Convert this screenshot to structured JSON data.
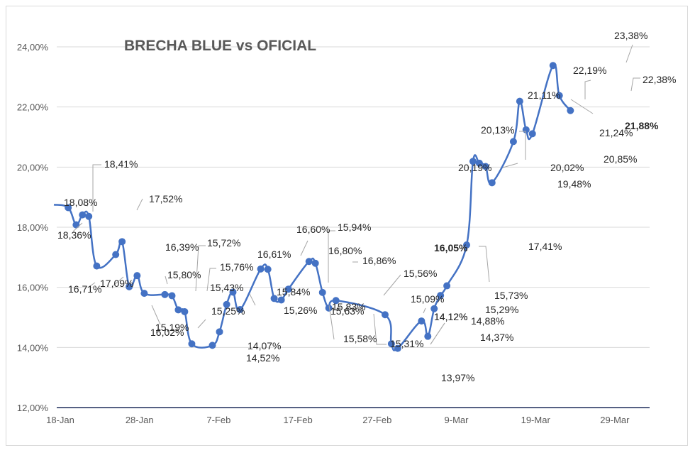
{
  "chart_data": {
    "type": "line",
    "title": "BRECHA BLUE vs OFICIAL",
    "xlabel": "",
    "ylabel": "",
    "ylim": [
      12,
      24
    ],
    "y_ticks": [
      "12,00%",
      "14,00%",
      "16,00%",
      "18,00%",
      "20,00%",
      "22,00%",
      "24,00%"
    ],
    "x_ticks": [
      "18-Jan",
      "28-Jan",
      "7-Feb",
      "17-Feb",
      "27-Feb",
      "9-Mar",
      "19-Mar",
      "29-Mar"
    ],
    "x_tick_days": [
      0,
      10,
      20,
      30,
      40,
      50,
      60,
      70
    ],
    "grid": "horizontal",
    "line_color": "#4472c4",
    "series": [
      {
        "values": [
          {
            "day": -0.8,
            "y": 18.75,
            "label": ""
          },
          {
            "day": 1.0,
            "y": 18.65,
            "label": ""
          },
          {
            "day": 2.0,
            "y": 18.08,
            "label": "18,08%"
          },
          {
            "day": 2.8,
            "y": 18.41,
            "label": "18,41%"
          },
          {
            "day": 3.6,
            "y": 18.36,
            "label": "18,36%"
          },
          {
            "day": 4.6,
            "y": 16.71,
            "label": "16,71%"
          },
          {
            "day": 7.0,
            "y": 17.09,
            "label": "17,09%"
          },
          {
            "day": 7.8,
            "y": 17.52,
            "label": "17,52%"
          },
          {
            "day": 8.7,
            "y": 16.02,
            "label": "16,02%"
          },
          {
            "day": 9.7,
            "y": 16.39,
            "label": "16,39%"
          },
          {
            "day": 10.6,
            "y": 15.8,
            "label": "15,80%"
          },
          {
            "day": 13.2,
            "y": 15.76,
            "label": "15,76%"
          },
          {
            "day": 14.1,
            "y": 15.72,
            "label": "15,72%"
          },
          {
            "day": 14.9,
            "y": 15.25,
            "label": "15,25%"
          },
          {
            "day": 15.7,
            "y": 15.19,
            "label": "15,19%"
          },
          {
            "day": 16.6,
            "y": 14.12,
            "label": "14,12%"
          },
          {
            "day": 19.2,
            "y": 14.07,
            "label": "14,07%"
          },
          {
            "day": 20.1,
            "y": 14.52,
            "label": "14,52%"
          },
          {
            "day": 21.0,
            "y": 15.43,
            "label": "15,43%"
          },
          {
            "day": 21.8,
            "y": 15.84,
            "label": "15,84%"
          },
          {
            "day": 22.7,
            "y": 15.26,
            "label": "15,26%"
          },
          {
            "day": 25.3,
            "y": 16.61,
            "label": "16,61%"
          },
          {
            "day": 26.2,
            "y": 16.6,
            "label": "16,60%"
          },
          {
            "day": 27.0,
            "y": 15.63,
            "label": "15,63%"
          },
          {
            "day": 27.9,
            "y": 15.58,
            "label": "15,58%"
          },
          {
            "day": 28.8,
            "y": 15.94,
            "label": "15,94%"
          },
          {
            "day": 31.4,
            "y": 16.86,
            "label": "16,86%"
          },
          {
            "day": 32.2,
            "y": 16.8,
            "label": "16,80%"
          },
          {
            "day": 33.1,
            "y": 15.83,
            "label": "15,83%"
          },
          {
            "day": 33.9,
            "y": 15.31,
            "label": "15,31%"
          },
          {
            "day": 34.8,
            "y": 15.56,
            "label": "15,56%"
          },
          {
            "day": 41.0,
            "y": 15.09,
            "label": "15,09%"
          },
          {
            "day": 41.8,
            "y": 14.12,
            "label": "14,12%"
          },
          {
            "day": 42.6,
            "y": 13.97,
            "label": "13,97%"
          },
          {
            "day": 45.6,
            "y": 14.88,
            "label": "14,88%"
          },
          {
            "day": 46.4,
            "y": 14.37,
            "label": "14,37%"
          },
          {
            "day": 47.2,
            "y": 15.29,
            "label": "15,29%"
          },
          {
            "day": 48.0,
            "y": 15.73,
            "label": "15,73%"
          },
          {
            "day": 48.8,
            "y": 16.05,
            "label": "16,05%"
          },
          {
            "day": 51.3,
            "y": 17.41,
            "label": "17,41%"
          },
          {
            "day": 52.1,
            "y": 20.19,
            "label": "20,19%"
          },
          {
            "day": 52.9,
            "y": 20.13,
            "label": "20,13%"
          },
          {
            "day": 53.7,
            "y": 20.02,
            "label": "20,02%"
          },
          {
            "day": 54.5,
            "y": 19.48,
            "label": "19,48%"
          },
          {
            "day": 57.2,
            "y": 20.85,
            "label": "20,85%"
          },
          {
            "day": 58.0,
            "y": 22.19,
            "label": "22,19%"
          },
          {
            "day": 58.8,
            "y": 21.24,
            "label": "21,24%"
          },
          {
            "day": 59.6,
            "y": 21.11,
            "label": "21,11%"
          },
          {
            "day": 62.2,
            "y": 23.38,
            "label": "23,38%"
          },
          {
            "day": 63.0,
            "y": 22.38,
            "label": "22,38%"
          },
          {
            "day": 64.4,
            "y": 21.88,
            "label": "21,88%"
          }
        ]
      }
    ]
  }
}
